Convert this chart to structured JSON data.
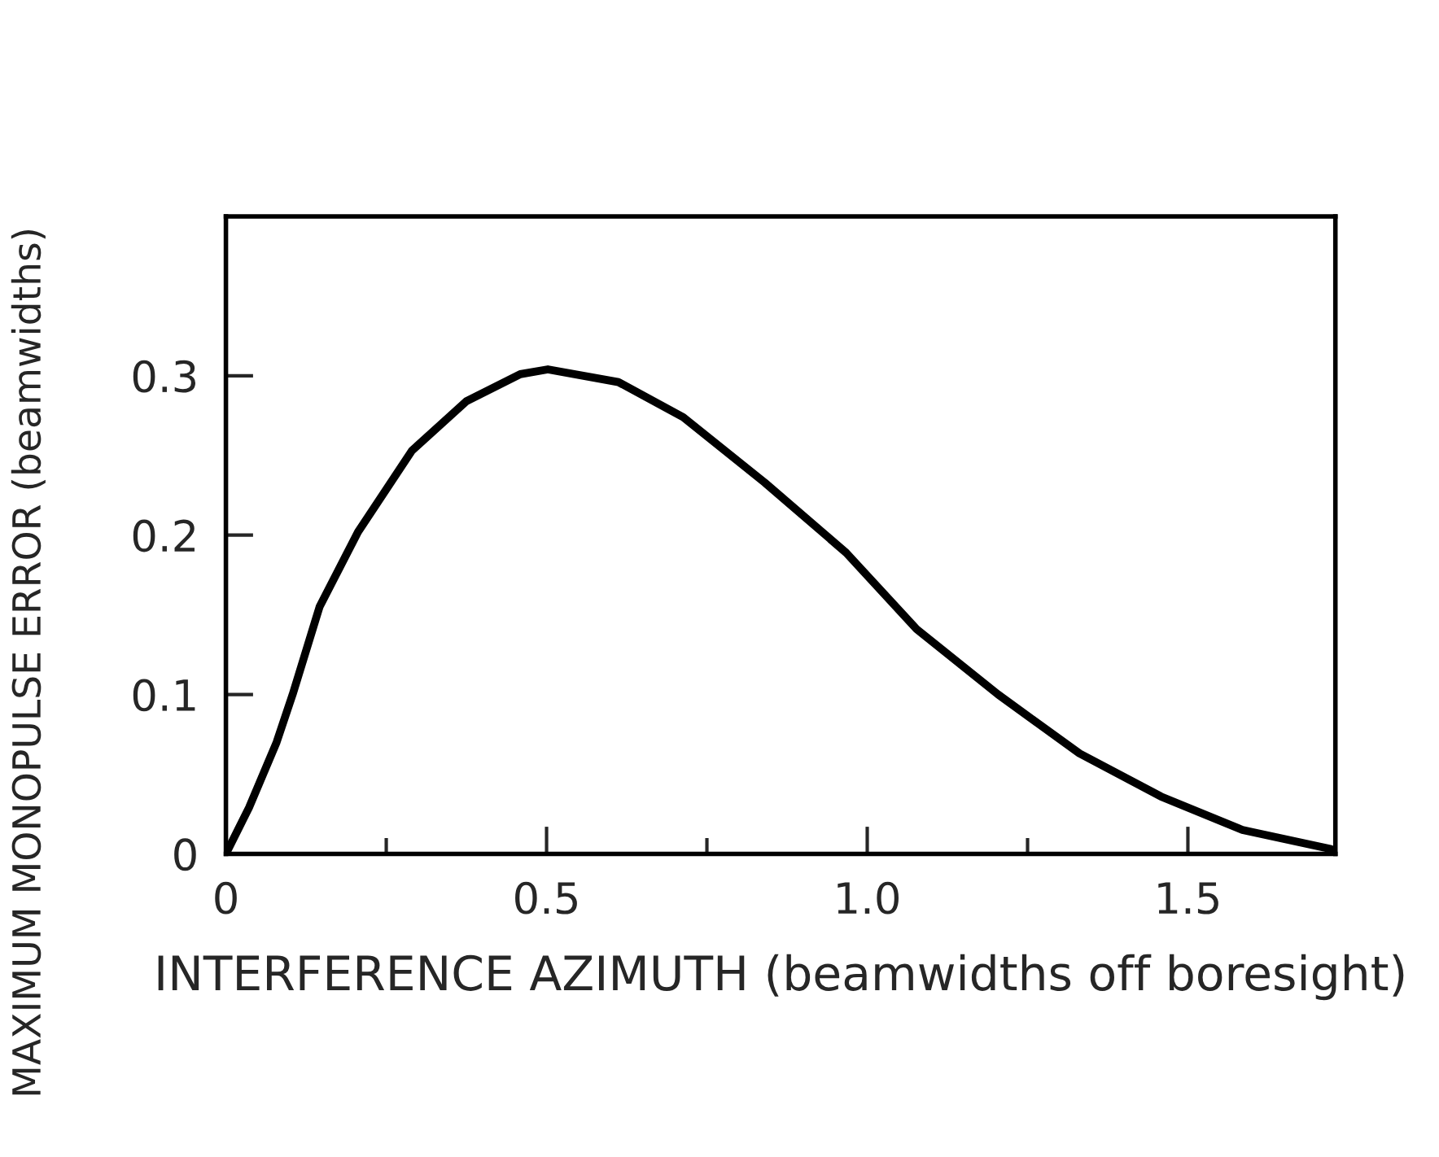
{
  "chart_data": {
    "type": "line",
    "xlabel": "INTERFERENCE AZIMUTH (beamwidths off boresight)",
    "ylabel": "MAXIMUM MONOPULSE ERROR (beamwidths)",
    "xlim": [
      0,
      1.73
    ],
    "ylim": [
      0,
      0.4
    ],
    "xticks": [
      {
        "value": 0,
        "label": "0"
      },
      {
        "value": 0.25,
        "label": null
      },
      {
        "value": 0.5,
        "label": "0.5"
      },
      {
        "value": 0.75,
        "label": null
      },
      {
        "value": 1.0,
        "label": "1.0"
      },
      {
        "value": 1.25,
        "label": null
      },
      {
        "value": 1.5,
        "label": "1.5"
      }
    ],
    "yticks": [
      {
        "value": 0,
        "label": "0"
      },
      {
        "value": 0.1,
        "label": "0.1"
      },
      {
        "value": 0.2,
        "label": "0.2"
      },
      {
        "value": 0.3,
        "label": "0.3"
      }
    ],
    "grid": false,
    "legend": false,
    "marker": "none",
    "line_style": "solid",
    "series": [
      {
        "color": "#000000",
        "x": [
          0,
          0.036,
          0.079,
          0.104,
          0.146,
          0.206,
          0.29,
          0.375,
          0.459,
          0.502,
          0.612,
          0.713,
          0.84,
          0.967,
          1.077,
          1.204,
          1.331,
          1.458,
          1.585,
          1.723
        ],
        "values": [
          0,
          0.029,
          0.07,
          0.1,
          0.155,
          0.202,
          0.253,
          0.284,
          0.301,
          0.304,
          0.296,
          0.274,
          0.233,
          0.189,
          0.141,
          0.1,
          0.063,
          0.036,
          0.015,
          0.003
        ]
      }
    ]
  }
}
